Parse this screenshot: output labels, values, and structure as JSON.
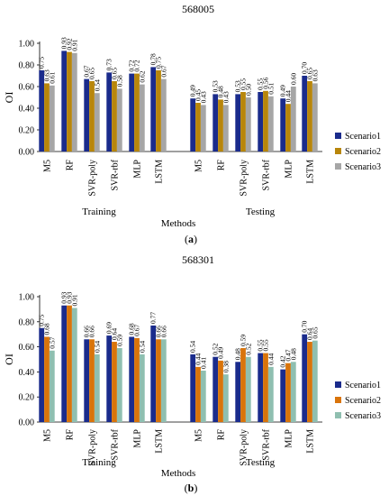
{
  "chart_data": [
    {
      "type": "bar",
      "title": "568005",
      "ylabel": "OI",
      "xlabel": "Methods",
      "panel_label": "(a)",
      "group_labels": [
        "Training",
        "Testing"
      ],
      "ylim": [
        0,
        1.0
      ],
      "yticks": [
        "0.00",
        "0.20",
        "0.40",
        "0.60",
        "0.80",
        "1.00"
      ],
      "legend_position": "right",
      "categories": [
        "M5",
        "RF",
        "SVR-poly",
        "SVR-rbf",
        "MLP",
        "LSTM",
        "M5",
        "RF",
        "SVR-poly",
        "SVR-rbf",
        "MLP",
        "LSTM"
      ],
      "series": [
        {
          "name": "Scenario1",
          "color": "#1a2b8c",
          "values": [
            0.75,
            0.93,
            0.67,
            0.73,
            0.72,
            0.78,
            0.49,
            0.53,
            0.53,
            0.55,
            0.49,
            0.7
          ]
        },
        {
          "name": "Scenario2",
          "color": "#b8860b",
          "values": [
            0.63,
            0.92,
            0.65,
            0.65,
            0.72,
            0.75,
            0.45,
            0.48,
            0.55,
            0.56,
            0.44,
            0.65
          ]
        },
        {
          "name": "Scenario3",
          "color": "#a6a6a6",
          "values": [
            0.61,
            0.91,
            0.54,
            0.58,
            0.62,
            0.67,
            0.43,
            0.43,
            0.5,
            0.51,
            0.6,
            0.63
          ]
        }
      ]
    },
    {
      "type": "bar",
      "title": "568301",
      "ylabel": "OI",
      "xlabel": "Methods",
      "panel_label": "(b)",
      "group_labels": [
        "Training",
        "Testing"
      ],
      "ylim": [
        0,
        1.0
      ],
      "yticks": [
        "0.00",
        "0.20",
        "0.40",
        "0.60",
        "0.80",
        "1.00"
      ],
      "legend_position": "right",
      "categories": [
        "M5",
        "RF",
        "SVR-poly",
        "SVR-rbf",
        "MLP",
        "LSTM",
        "M5",
        "RF",
        "SVR-poly",
        "SVR-rbf",
        "MLP",
        "LSTM"
      ],
      "series": [
        {
          "name": "Scenario1",
          "color": "#1a2b8c",
          "values": [
            0.75,
            0.93,
            0.66,
            0.69,
            0.68,
            0.77,
            0.54,
            0.52,
            0.48,
            0.55,
            0.42,
            0.7
          ]
        },
        {
          "name": "Scenario2",
          "color": "#d9740b",
          "values": [
            0.68,
            0.93,
            0.66,
            0.64,
            0.67,
            0.66,
            0.44,
            0.49,
            0.59,
            0.55,
            0.47,
            0.64
          ]
        },
        {
          "name": "Scenario3",
          "color": "#8fbfb0",
          "values": [
            0.57,
            0.91,
            0.54,
            0.59,
            0.54,
            0.66,
            0.41,
            0.38,
            0.52,
            0.44,
            0.48,
            0.65
          ]
        }
      ]
    }
  ]
}
